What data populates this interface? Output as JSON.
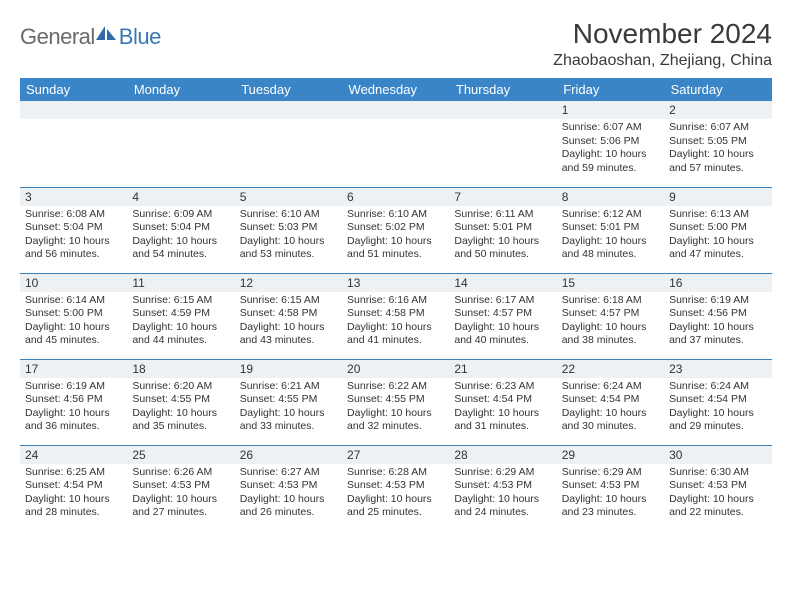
{
  "logo": {
    "text1": "General",
    "text2": "Blue"
  },
  "title": "November 2024",
  "location": "Zhaobaoshan, Zhejiang, China",
  "colors": {
    "header_bg": "#3a85c7",
    "header_text": "#ffffff",
    "daynum_bg": "#eef1f4",
    "border": "#4a7fa8",
    "logo_gray": "#6a6a6a",
    "logo_blue": "#3a78b5"
  },
  "fonts": {
    "title_size": 28,
    "location_size": 16,
    "dayhead_size": 13,
    "daynum_size": 12,
    "detail_size": 10.5
  },
  "dayNames": [
    "Sunday",
    "Monday",
    "Tuesday",
    "Wednesday",
    "Thursday",
    "Friday",
    "Saturday"
  ],
  "weeks": [
    [
      null,
      null,
      null,
      null,
      null,
      {
        "n": "1",
        "sr": "Sunrise: 6:07 AM",
        "ss": "Sunset: 5:06 PM",
        "d1": "Daylight: 10 hours",
        "d2": "and 59 minutes."
      },
      {
        "n": "2",
        "sr": "Sunrise: 6:07 AM",
        "ss": "Sunset: 5:05 PM",
        "d1": "Daylight: 10 hours",
        "d2": "and 57 minutes."
      }
    ],
    [
      {
        "n": "3",
        "sr": "Sunrise: 6:08 AM",
        "ss": "Sunset: 5:04 PM",
        "d1": "Daylight: 10 hours",
        "d2": "and 56 minutes."
      },
      {
        "n": "4",
        "sr": "Sunrise: 6:09 AM",
        "ss": "Sunset: 5:04 PM",
        "d1": "Daylight: 10 hours",
        "d2": "and 54 minutes."
      },
      {
        "n": "5",
        "sr": "Sunrise: 6:10 AM",
        "ss": "Sunset: 5:03 PM",
        "d1": "Daylight: 10 hours",
        "d2": "and 53 minutes."
      },
      {
        "n": "6",
        "sr": "Sunrise: 6:10 AM",
        "ss": "Sunset: 5:02 PM",
        "d1": "Daylight: 10 hours",
        "d2": "and 51 minutes."
      },
      {
        "n": "7",
        "sr": "Sunrise: 6:11 AM",
        "ss": "Sunset: 5:01 PM",
        "d1": "Daylight: 10 hours",
        "d2": "and 50 minutes."
      },
      {
        "n": "8",
        "sr": "Sunrise: 6:12 AM",
        "ss": "Sunset: 5:01 PM",
        "d1": "Daylight: 10 hours",
        "d2": "and 48 minutes."
      },
      {
        "n": "9",
        "sr": "Sunrise: 6:13 AM",
        "ss": "Sunset: 5:00 PM",
        "d1": "Daylight: 10 hours",
        "d2": "and 47 minutes."
      }
    ],
    [
      {
        "n": "10",
        "sr": "Sunrise: 6:14 AM",
        "ss": "Sunset: 5:00 PM",
        "d1": "Daylight: 10 hours",
        "d2": "and 45 minutes."
      },
      {
        "n": "11",
        "sr": "Sunrise: 6:15 AM",
        "ss": "Sunset: 4:59 PM",
        "d1": "Daylight: 10 hours",
        "d2": "and 44 minutes."
      },
      {
        "n": "12",
        "sr": "Sunrise: 6:15 AM",
        "ss": "Sunset: 4:58 PM",
        "d1": "Daylight: 10 hours",
        "d2": "and 43 minutes."
      },
      {
        "n": "13",
        "sr": "Sunrise: 6:16 AM",
        "ss": "Sunset: 4:58 PM",
        "d1": "Daylight: 10 hours",
        "d2": "and 41 minutes."
      },
      {
        "n": "14",
        "sr": "Sunrise: 6:17 AM",
        "ss": "Sunset: 4:57 PM",
        "d1": "Daylight: 10 hours",
        "d2": "and 40 minutes."
      },
      {
        "n": "15",
        "sr": "Sunrise: 6:18 AM",
        "ss": "Sunset: 4:57 PM",
        "d1": "Daylight: 10 hours",
        "d2": "and 38 minutes."
      },
      {
        "n": "16",
        "sr": "Sunrise: 6:19 AM",
        "ss": "Sunset: 4:56 PM",
        "d1": "Daylight: 10 hours",
        "d2": "and 37 minutes."
      }
    ],
    [
      {
        "n": "17",
        "sr": "Sunrise: 6:19 AM",
        "ss": "Sunset: 4:56 PM",
        "d1": "Daylight: 10 hours",
        "d2": "and 36 minutes."
      },
      {
        "n": "18",
        "sr": "Sunrise: 6:20 AM",
        "ss": "Sunset: 4:55 PM",
        "d1": "Daylight: 10 hours",
        "d2": "and 35 minutes."
      },
      {
        "n": "19",
        "sr": "Sunrise: 6:21 AM",
        "ss": "Sunset: 4:55 PM",
        "d1": "Daylight: 10 hours",
        "d2": "and 33 minutes."
      },
      {
        "n": "20",
        "sr": "Sunrise: 6:22 AM",
        "ss": "Sunset: 4:55 PM",
        "d1": "Daylight: 10 hours",
        "d2": "and 32 minutes."
      },
      {
        "n": "21",
        "sr": "Sunrise: 6:23 AM",
        "ss": "Sunset: 4:54 PM",
        "d1": "Daylight: 10 hours",
        "d2": "and 31 minutes."
      },
      {
        "n": "22",
        "sr": "Sunrise: 6:24 AM",
        "ss": "Sunset: 4:54 PM",
        "d1": "Daylight: 10 hours",
        "d2": "and 30 minutes."
      },
      {
        "n": "23",
        "sr": "Sunrise: 6:24 AM",
        "ss": "Sunset: 4:54 PM",
        "d1": "Daylight: 10 hours",
        "d2": "and 29 minutes."
      }
    ],
    [
      {
        "n": "24",
        "sr": "Sunrise: 6:25 AM",
        "ss": "Sunset: 4:54 PM",
        "d1": "Daylight: 10 hours",
        "d2": "and 28 minutes."
      },
      {
        "n": "25",
        "sr": "Sunrise: 6:26 AM",
        "ss": "Sunset: 4:53 PM",
        "d1": "Daylight: 10 hours",
        "d2": "and 27 minutes."
      },
      {
        "n": "26",
        "sr": "Sunrise: 6:27 AM",
        "ss": "Sunset: 4:53 PM",
        "d1": "Daylight: 10 hours",
        "d2": "and 26 minutes."
      },
      {
        "n": "27",
        "sr": "Sunrise: 6:28 AM",
        "ss": "Sunset: 4:53 PM",
        "d1": "Daylight: 10 hours",
        "d2": "and 25 minutes."
      },
      {
        "n": "28",
        "sr": "Sunrise: 6:29 AM",
        "ss": "Sunset: 4:53 PM",
        "d1": "Daylight: 10 hours",
        "d2": "and 24 minutes."
      },
      {
        "n": "29",
        "sr": "Sunrise: 6:29 AM",
        "ss": "Sunset: 4:53 PM",
        "d1": "Daylight: 10 hours",
        "d2": "and 23 minutes."
      },
      {
        "n": "30",
        "sr": "Sunrise: 6:30 AM",
        "ss": "Sunset: 4:53 PM",
        "d1": "Daylight: 10 hours",
        "d2": "and 22 minutes."
      }
    ]
  ]
}
